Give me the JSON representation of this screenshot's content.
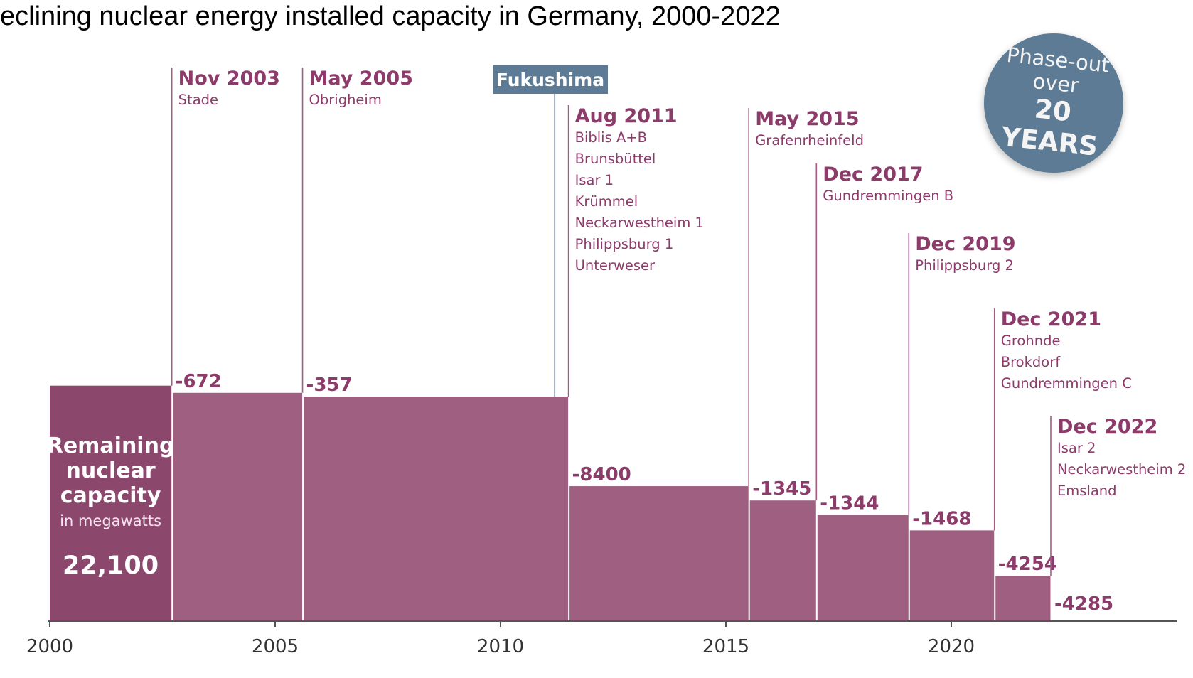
{
  "title": "eclining nuclear energy installed capacity in Germany, 2000-2022",
  "badge": {
    "line1": "Phase-out",
    "line2": "over",
    "line3": "20 YEARS"
  },
  "colors": {
    "bar": "#9f5f81",
    "bar_initial": "#8c476d",
    "label": "#8c3b6a",
    "marker": "#a55a86",
    "fukushima": "#5d7b94",
    "axis": "#555555"
  },
  "chart_data": {
    "type": "step-area",
    "title": "",
    "xlabel": "",
    "ylabel": "",
    "x_ticks": [
      2000,
      2005,
      2010,
      2015,
      2020
    ],
    "xlim": [
      2000,
      2025
    ],
    "initial": {
      "x": 2000,
      "value": 22100,
      "value_label": "22,100",
      "label_lines": [
        "Remaining",
        "nuclear",
        "capacity"
      ],
      "sublabel": "in megawatts"
    },
    "steps": [
      {
        "date": "Nov 2003",
        "x": 2002.7,
        "change": -672,
        "change_label": "-672",
        "plants": [
          "Stade"
        ]
      },
      {
        "date": "May 2005",
        "x": 2005.6,
        "change": -357,
        "change_label": "-357",
        "plants": [
          "Obrigheim"
        ]
      },
      {
        "date": "Aug 2011",
        "x": 2011.5,
        "change": -8400,
        "change_label": "-8400",
        "plants": [
          "Biblis A+B",
          "Brunsbüttel",
          "Isar 1",
          "Krümmel",
          "Neckarwestheim 1",
          "Philippsburg 1",
          "Unterweser"
        ]
      },
      {
        "date": "May 2015",
        "x": 2015.5,
        "change": -1345,
        "change_label": "-1345",
        "plants": [
          "Grafenrheinfeld"
        ]
      },
      {
        "date": "Dec 2017",
        "x": 2017.0,
        "change": -1344,
        "change_label": "-1344",
        "plants": [
          "Gundremmingen B"
        ]
      },
      {
        "date": "Dec 2019",
        "x": 2019.05,
        "change": -1468,
        "change_label": "-1468",
        "plants": [
          "Philippsburg 2"
        ]
      },
      {
        "date": "Dec 2021",
        "x": 2020.95,
        "change": -4254,
        "change_label": "-4254",
        "plants": [
          "Grohnde",
          "Brokdorf",
          "Gundremmingen C"
        ]
      },
      {
        "date": "Dec 2022",
        "x": 2022.2,
        "change": -4285,
        "change_label": "-4285",
        "plants": [
          "Isar 2",
          "Neckarwestheim 2",
          "Emsland"
        ]
      }
    ],
    "event": {
      "label": "Fukushima",
      "x": 2011.2
    }
  }
}
